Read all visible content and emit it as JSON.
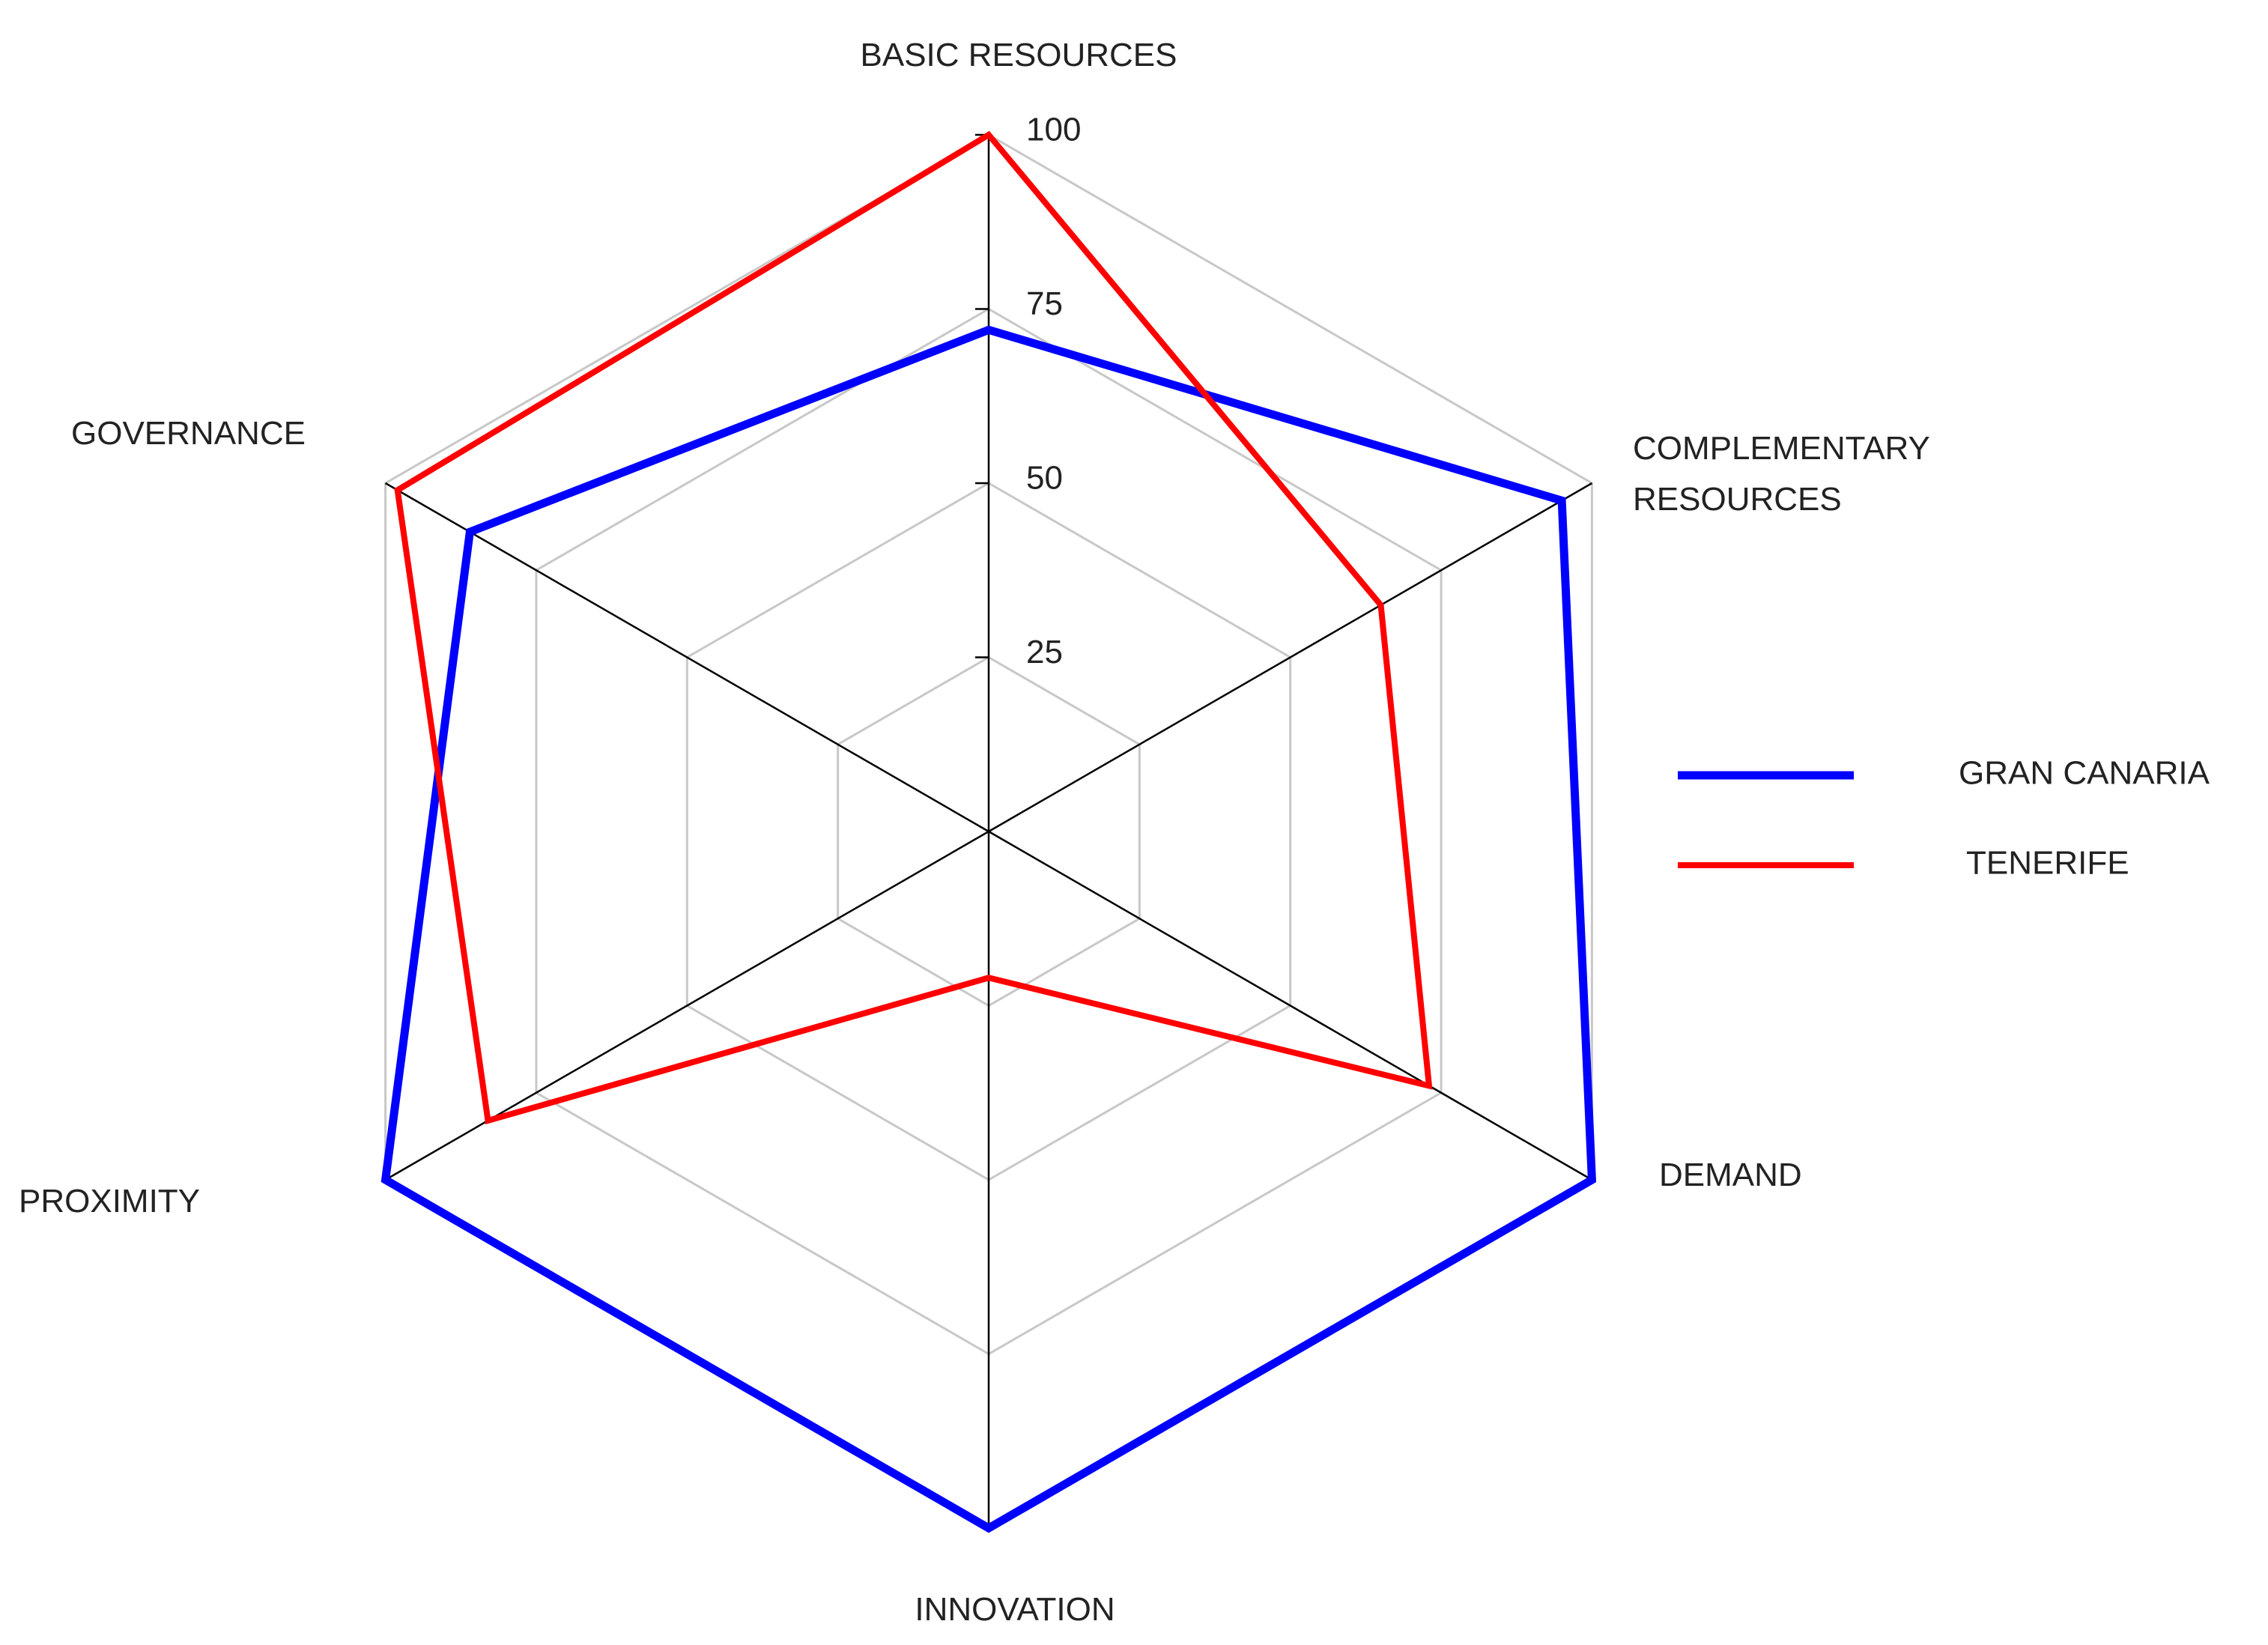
{
  "chart_data": {
    "type": "radar",
    "categories": [
      "BASIC RESOURCES",
      "COMPLEMENTARY RESOURCES",
      "DEMAND",
      "INNOVATION",
      "PROXIMITY",
      "GOVERNANCE"
    ],
    "series": [
      {
        "name": "GRAN CANARIA",
        "color": "#0000ff",
        "values": [
          72,
          95,
          100,
          100,
          100,
          86
        ]
      },
      {
        "name": "TENERIFE",
        "color": "#ff0000",
        "values": [
          100,
          65,
          73,
          21,
          83,
          98
        ]
      }
    ],
    "rlim": [
      0,
      100
    ],
    "rticks": [
      25,
      50,
      75,
      100
    ],
    "grid": true,
    "legend": "right"
  }
}
